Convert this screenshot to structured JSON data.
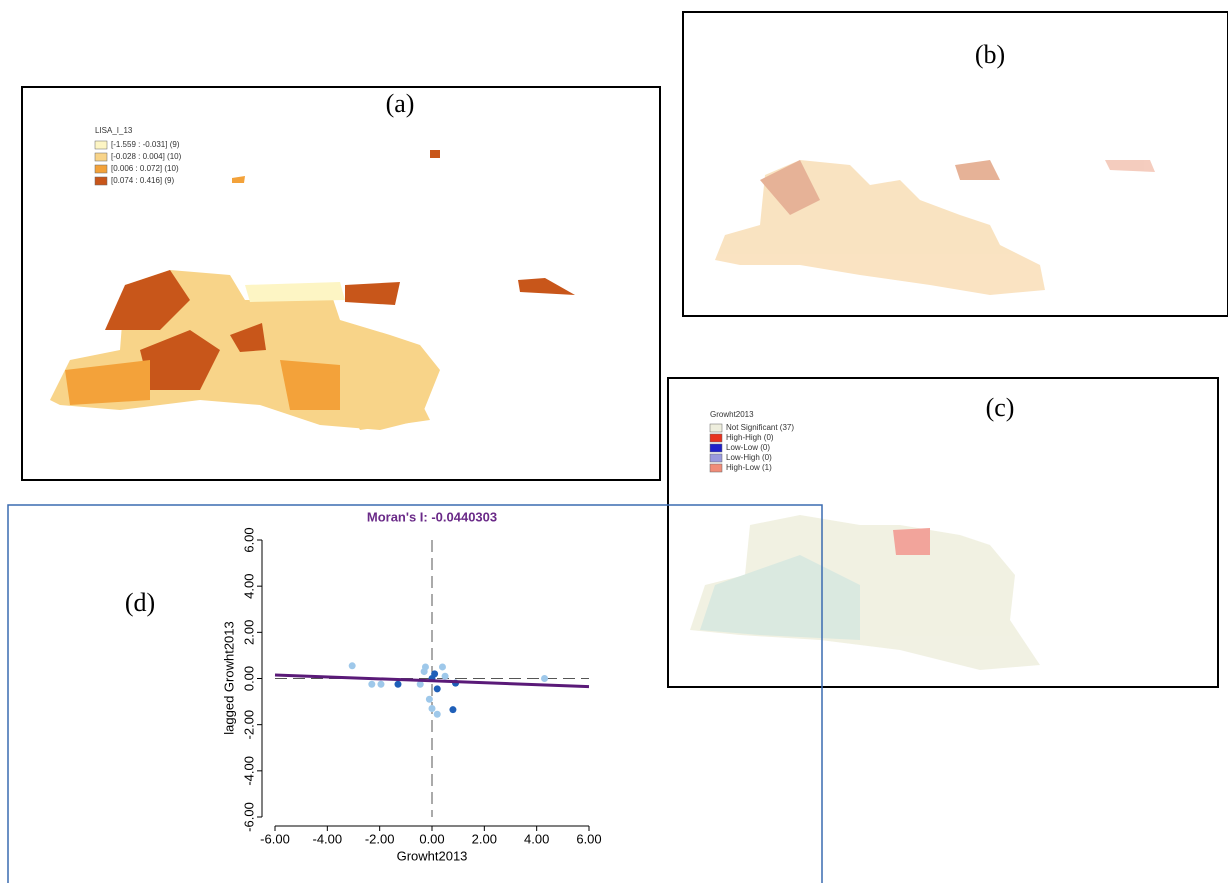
{
  "panels": {
    "a": {
      "label": "(a)",
      "legend_title": "LISA_I_13",
      "legend": [
        {
          "label": "[-1.559 : -0.031] (9)",
          "color": "#fdf5c4"
        },
        {
          "label": "[-0.028 : 0.004] (10)",
          "color": "#f8d489"
        },
        {
          "label": "[0.006 : 0.072] (10)",
          "color": "#f3a23a"
        },
        {
          "label": "[0.074 : 0.416] (9)",
          "color": "#c8561a"
        }
      ]
    },
    "b": {
      "label": "(b)"
    },
    "c": {
      "label": "(c)",
      "legend_title": "Growht2013",
      "legend": [
        {
          "label": "Not Significant (37)",
          "color": "#eeeedd"
        },
        {
          "label": "High-High (0)",
          "color": "#e8321f"
        },
        {
          "label": "Low-Low (0)",
          "color": "#2020c8"
        },
        {
          "label": "Low-High (0)",
          "color": "#9999dd"
        },
        {
          "label": "High-Low (1)",
          "color": "#f08c78"
        }
      ]
    },
    "d": {
      "label": "(d)"
    }
  },
  "chart_data": {
    "type": "scatter",
    "title": "Moran's I: -0.0440303",
    "x_label": "Growht2013",
    "y_label": "lagged Growht2013",
    "xlim": [
      -6,
      6
    ],
    "ylim": [
      -6,
      6
    ],
    "xticks": [
      {
        "value": -6,
        "label": "-6.00"
      },
      {
        "value": -4,
        "label": "-4.00"
      },
      {
        "value": -2,
        "label": "-2.00"
      },
      {
        "value": 0,
        "label": "0.00"
      },
      {
        "value": 2,
        "label": "2.00"
      },
      {
        "value": 4,
        "label": "4.00"
      },
      {
        "value": 6,
        "label": "6.00"
      }
    ],
    "yticks": [
      {
        "value": -6,
        "label": "-6.00"
      },
      {
        "value": -4,
        "label": "-4.00"
      },
      {
        "value": -2,
        "label": "-2.00"
      },
      {
        "value": 0,
        "label": "0.00"
      },
      {
        "value": 2,
        "label": "2.00"
      },
      {
        "value": 4,
        "label": "4.00"
      },
      {
        "value": 6,
        "label": "6.00"
      }
    ],
    "x": [
      -3.05,
      -1.95,
      -2.3,
      -1.3,
      0,
      0.2,
      0.9,
      0.8,
      0,
      0.2,
      0.4,
      -0.25,
      -0.45,
      4.3,
      0.1,
      -0.1,
      0.5,
      -0.3
    ],
    "y": [
      0.55,
      -0.25,
      -0.25,
      -0.25,
      0,
      -0.45,
      -0.2,
      -1.35,
      -1.3,
      -1.55,
      0.5,
      0.5,
      -0.25,
      0,
      0.2,
      -0.9,
      0.1,
      0.3
    ],
    "point_colors": [
      "#9ec8ea",
      "#9ec8ea",
      "#9ec8ea",
      "#1f5fb8",
      "#1f5fb8",
      "#1f5fb8",
      "#1f5fb8",
      "#1f5fb8",
      "#9ec8ea",
      "#9ec8ea",
      "#9ec8ea",
      "#9ec8ea",
      "#9ec8ea",
      "#9ec8ea",
      "#1f5fb8",
      "#9ec8ea",
      "#9ec8ea",
      "#9ec8ea"
    ],
    "trend_line": {
      "x": [
        -6,
        6
      ],
      "y": [
        0.15,
        -0.35
      ],
      "color": "#5a1a78"
    },
    "title_color": "#6a2a88"
  }
}
